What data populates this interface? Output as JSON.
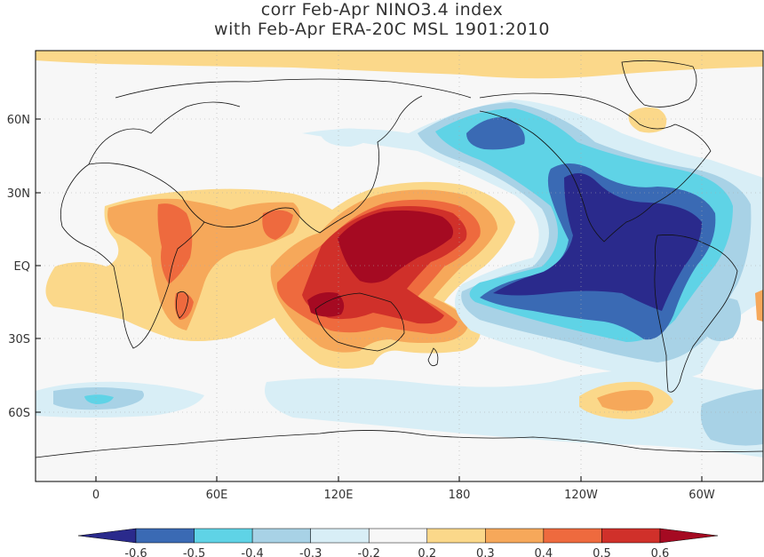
{
  "title_line1": "corr Feb-Apr NINO3.4 index",
  "title_line2": "with Feb-Apr ERA-20C MSL 1901:2010",
  "x_tick_labels": [
    "0",
    "60E",
    "120E",
    "180",
    "120W",
    "60W"
  ],
  "y_tick_labels": [
    "60N",
    "30N",
    "EQ",
    "30S",
    "60S"
  ],
  "colorbar": {
    "labels": [
      "-0.6",
      "-0.5",
      "-0.4",
      "-0.3",
      "-0.2",
      "0.2",
      "0.3",
      "0.4",
      "0.5",
      "0.6"
    ],
    "colors": [
      "#2a2a8c",
      "#3a6ab4",
      "#5fd3e6",
      "#a8d2e6",
      "#d8eef6",
      "#f7f7f7",
      "#fbd88a",
      "#f6a85a",
      "#ee6a3e",
      "#d0302a",
      "#a50a22"
    ]
  },
  "chart_data": {
    "type": "heatmap",
    "x_range_deg": [
      -30,
      330
    ],
    "y_range_deg": [
      -90,
      90
    ],
    "color_levels": [
      -0.6,
      -0.5,
      -0.4,
      -0.3,
      -0.2,
      0.2,
      0.3,
      0.4,
      0.5,
      0.6
    ]
  }
}
